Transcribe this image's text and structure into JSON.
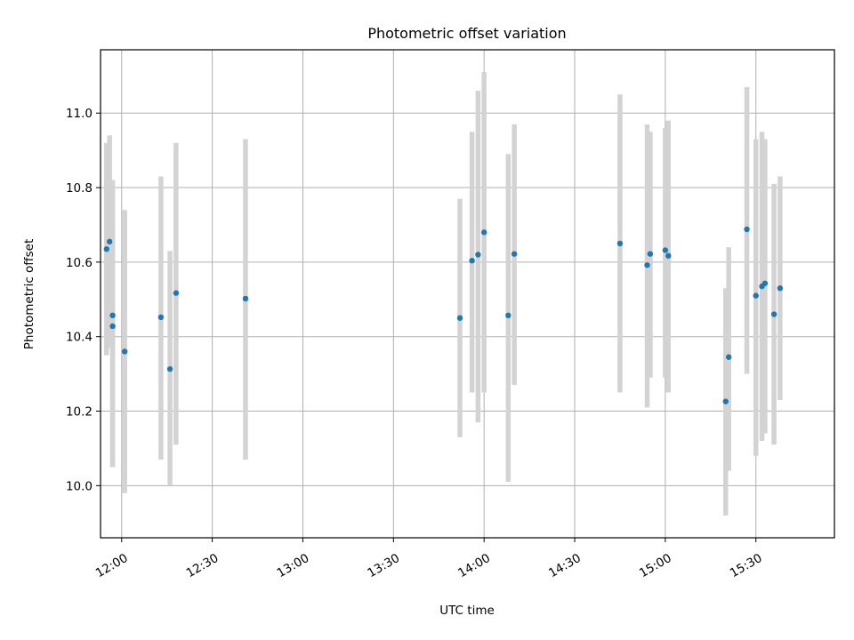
{
  "chart_data": {
    "type": "scatter",
    "title": "Photometric offset variation",
    "xlabel": "UTC time",
    "ylabel": "Photometric offset",
    "x_format": "HH:MM",
    "x_range": [
      "11:53",
      "15:56"
    ],
    "ylim": [
      9.86,
      11.17
    ],
    "x_ticks": [
      "12:00",
      "12:30",
      "13:00",
      "13:30",
      "14:00",
      "14:30",
      "15:00",
      "15:30"
    ],
    "y_ticks": [
      10.0,
      10.2,
      10.4,
      10.6,
      10.8,
      11.0
    ],
    "y_tick_labels": [
      "10.0",
      "10.2",
      "10.4",
      "10.6",
      "10.8",
      "11.0"
    ],
    "grid": true,
    "point_color": "#1f77b4",
    "errorbar_color": "#d3d3d3",
    "points": [
      {
        "x": "11:55",
        "y": 10.635,
        "err_low": 10.35,
        "err_high": 10.92
      },
      {
        "x": "11:56",
        "y": 10.655,
        "err_low": 10.37,
        "err_high": 10.94
      },
      {
        "x": "11:57",
        "y": 10.457,
        "err_low": 10.05,
        "err_high": 10.82
      },
      {
        "x": "11:57",
        "y": 10.428,
        "err_low": 10.05,
        "err_high": 10.8
      },
      {
        "x": "12:01",
        "y": 10.36,
        "err_low": 9.98,
        "err_high": 10.74
      },
      {
        "x": "12:13",
        "y": 10.452,
        "err_low": 10.07,
        "err_high": 10.83
      },
      {
        "x": "12:16",
        "y": 10.313,
        "err_low": 10.0,
        "err_high": 10.63
      },
      {
        "x": "12:18",
        "y": 10.517,
        "err_low": 10.11,
        "err_high": 10.92
      },
      {
        "x": "12:41",
        "y": 10.502,
        "err_low": 10.07,
        "err_high": 10.93
      },
      {
        "x": "13:52",
        "y": 10.45,
        "err_low": 10.13,
        "err_high": 10.77
      },
      {
        "x": "13:56",
        "y": 10.604,
        "err_low": 10.25,
        "err_high": 10.95
      },
      {
        "x": "13:58",
        "y": 10.62,
        "err_low": 10.17,
        "err_high": 11.06
      },
      {
        "x": "14:00",
        "y": 10.68,
        "err_low": 10.25,
        "err_high": 11.11
      },
      {
        "x": "14:08",
        "y": 10.457,
        "err_low": 10.01,
        "err_high": 10.89
      },
      {
        "x": "14:10",
        "y": 10.622,
        "err_low": 10.27,
        "err_high": 10.97
      },
      {
        "x": "14:45",
        "y": 10.65,
        "err_low": 10.25,
        "err_high": 11.05
      },
      {
        "x": "14:54",
        "y": 10.592,
        "err_low": 10.21,
        "err_high": 10.97
      },
      {
        "x": "14:55",
        "y": 10.622,
        "err_low": 10.29,
        "err_high": 10.95
      },
      {
        "x": "15:00",
        "y": 10.632,
        "err_low": 10.29,
        "err_high": 10.96
      },
      {
        "x": "15:01",
        "y": 10.617,
        "err_low": 10.25,
        "err_high": 10.98
      },
      {
        "x": "15:20",
        "y": 10.226,
        "err_low": 9.92,
        "err_high": 10.53
      },
      {
        "x": "15:21",
        "y": 10.345,
        "err_low": 10.04,
        "err_high": 10.64
      },
      {
        "x": "15:27",
        "y": 10.688,
        "err_low": 10.3,
        "err_high": 11.07
      },
      {
        "x": "15:30",
        "y": 10.51,
        "err_low": 10.08,
        "err_high": 10.93
      },
      {
        "x": "15:32",
        "y": 10.535,
        "err_low": 10.12,
        "err_high": 10.95
      },
      {
        "x": "15:33",
        "y": 10.543,
        "err_low": 10.14,
        "err_high": 10.93
      },
      {
        "x": "15:36",
        "y": 10.46,
        "err_low": 10.11,
        "err_high": 10.81
      },
      {
        "x": "15:38",
        "y": 10.53,
        "err_low": 10.23,
        "err_high": 10.83
      }
    ]
  }
}
